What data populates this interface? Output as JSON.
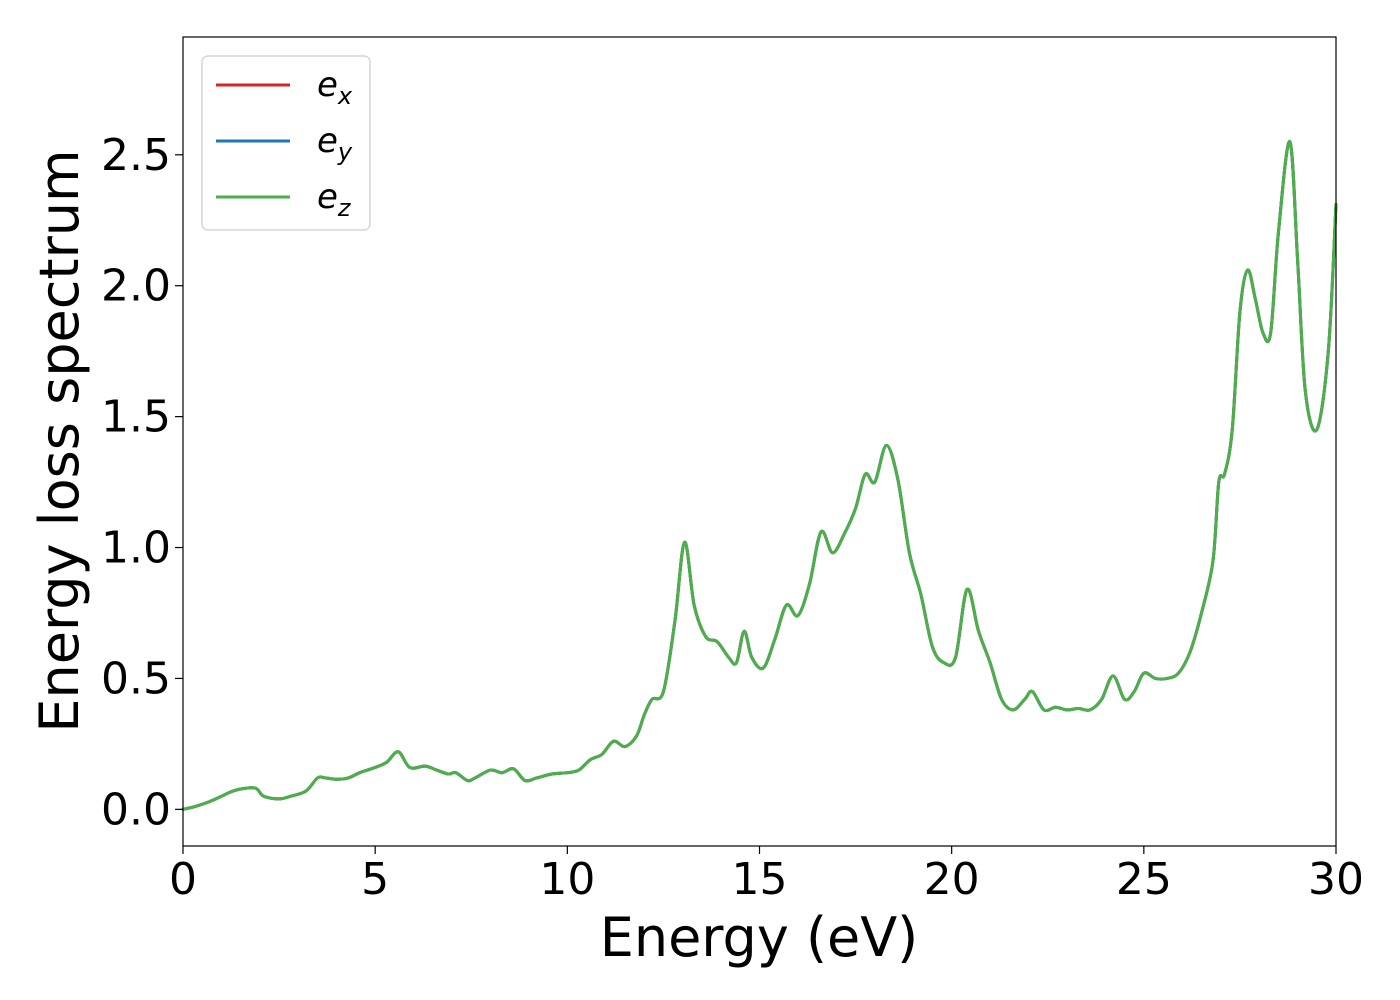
{
  "chart_data": {
    "type": "line",
    "title": "",
    "xlabel": "Energy (eV)",
    "ylabel": "Energy loss spectrum",
    "xlim": [
      0,
      30
    ],
    "ylim": [
      -0.14,
      2.95
    ],
    "xticks": [
      0,
      5,
      10,
      15,
      20,
      25,
      30
    ],
    "xtick_labels": [
      "0",
      "5",
      "10",
      "15",
      "20",
      "25",
      "30"
    ],
    "yticks": [
      0.0,
      0.5,
      1.0,
      1.5,
      2.0,
      2.5
    ],
    "ytick_labels": [
      "0.0",
      "0.5",
      "1.0",
      "1.5",
      "2.0",
      "2.5"
    ],
    "grid": false,
    "legend_position": "top-left",
    "x": [
      0,
      0.3,
      0.7,
      1.0,
      1.3,
      1.6,
      1.9,
      2.1,
      2.5,
      2.8,
      3.2,
      3.5,
      3.7,
      4.0,
      4.3,
      4.6,
      5.0,
      5.3,
      5.6,
      5.9,
      6.3,
      6.6,
      6.9,
      7.1,
      7.4,
      7.6,
      8.0,
      8.3,
      8.6,
      8.9,
      9.2,
      9.6,
      10.0,
      10.3,
      10.6,
      10.9,
      11.2,
      11.5,
      11.8,
      12.0,
      12.2,
      12.5,
      12.8,
      13.05,
      13.3,
      13.6,
      13.9,
      14.2,
      14.4,
      14.6,
      14.8,
      15.1,
      15.4,
      15.7,
      16.0,
      16.3,
      16.6,
      16.9,
      17.2,
      17.5,
      17.75,
      18.0,
      18.3,
      18.6,
      18.9,
      19.2,
      19.5,
      19.8,
      20.1,
      20.4,
      20.7,
      21.0,
      21.3,
      21.6,
      21.9,
      22.1,
      22.4,
      22.7,
      23.0,
      23.3,
      23.6,
      23.9,
      24.2,
      24.5,
      24.75,
      25.0,
      25.3,
      25.6,
      25.9,
      26.2,
      26.5,
      26.8,
      26.95,
      27.1,
      27.3,
      27.5,
      27.7,
      27.9,
      28.1,
      28.3,
      28.5,
      28.8,
      29.0,
      29.2,
      29.5,
      29.8,
      30.0
    ],
    "series": [
      {
        "name": "e_x",
        "color": "#d62728",
        "values": [
          0.0,
          0.01,
          0.03,
          0.05,
          0.07,
          0.08,
          0.08,
          0.05,
          0.04,
          0.05,
          0.07,
          0.12,
          0.12,
          0.115,
          0.12,
          0.14,
          0.16,
          0.18,
          0.22,
          0.16,
          0.165,
          0.15,
          0.135,
          0.14,
          0.11,
          0.12,
          0.15,
          0.14,
          0.155,
          0.11,
          0.12,
          0.135,
          0.14,
          0.15,
          0.19,
          0.21,
          0.26,
          0.24,
          0.28,
          0.36,
          0.42,
          0.45,
          0.72,
          1.02,
          0.78,
          0.66,
          0.64,
          0.58,
          0.56,
          0.68,
          0.58,
          0.54,
          0.65,
          0.78,
          0.74,
          0.86,
          1.06,
          0.98,
          1.05,
          1.15,
          1.28,
          1.25,
          1.39,
          1.26,
          0.98,
          0.82,
          0.62,
          0.56,
          0.58,
          0.84,
          0.68,
          0.56,
          0.42,
          0.38,
          0.42,
          0.45,
          0.38,
          0.39,
          0.38,
          0.385,
          0.38,
          0.42,
          0.51,
          0.42,
          0.45,
          0.52,
          0.5,
          0.5,
          0.52,
          0.6,
          0.75,
          0.95,
          1.25,
          1.28,
          1.45,
          1.9,
          2.06,
          1.95,
          1.82,
          1.82,
          2.2,
          2.55,
          2.1,
          1.6,
          1.45,
          1.75,
          2.31
        ]
      },
      {
        "name": "e_y",
        "color": "#1f77b4",
        "values": [
          0.0,
          0.01,
          0.03,
          0.05,
          0.07,
          0.08,
          0.08,
          0.05,
          0.04,
          0.05,
          0.07,
          0.12,
          0.12,
          0.115,
          0.12,
          0.14,
          0.16,
          0.18,
          0.22,
          0.16,
          0.165,
          0.15,
          0.135,
          0.14,
          0.11,
          0.12,
          0.15,
          0.14,
          0.155,
          0.11,
          0.12,
          0.135,
          0.14,
          0.15,
          0.19,
          0.21,
          0.26,
          0.24,
          0.28,
          0.36,
          0.42,
          0.45,
          0.72,
          1.02,
          0.78,
          0.66,
          0.64,
          0.58,
          0.56,
          0.68,
          0.58,
          0.54,
          0.65,
          0.78,
          0.74,
          0.86,
          1.06,
          0.98,
          1.05,
          1.15,
          1.28,
          1.25,
          1.39,
          1.26,
          0.98,
          0.82,
          0.62,
          0.56,
          0.58,
          0.84,
          0.68,
          0.56,
          0.42,
          0.38,
          0.42,
          0.45,
          0.38,
          0.39,
          0.38,
          0.385,
          0.38,
          0.42,
          0.51,
          0.42,
          0.45,
          0.52,
          0.5,
          0.5,
          0.52,
          0.6,
          0.75,
          0.95,
          1.25,
          1.28,
          1.45,
          1.9,
          2.06,
          1.95,
          1.82,
          1.82,
          2.2,
          2.55,
          2.1,
          1.6,
          1.45,
          1.75,
          2.31
        ]
      },
      {
        "name": "e_z",
        "color": "#4daf4a",
        "values": [
          0.0,
          0.01,
          0.03,
          0.05,
          0.07,
          0.08,
          0.08,
          0.05,
          0.04,
          0.05,
          0.07,
          0.12,
          0.12,
          0.115,
          0.12,
          0.14,
          0.16,
          0.18,
          0.22,
          0.16,
          0.165,
          0.15,
          0.135,
          0.14,
          0.11,
          0.12,
          0.15,
          0.14,
          0.155,
          0.11,
          0.12,
          0.135,
          0.14,
          0.15,
          0.19,
          0.21,
          0.26,
          0.24,
          0.28,
          0.36,
          0.42,
          0.45,
          0.72,
          1.02,
          0.78,
          0.66,
          0.64,
          0.58,
          0.56,
          0.68,
          0.58,
          0.54,
          0.65,
          0.78,
          0.74,
          0.86,
          1.06,
          0.98,
          1.05,
          1.15,
          1.28,
          1.25,
          1.39,
          1.26,
          0.98,
          0.82,
          0.62,
          0.56,
          0.58,
          0.84,
          0.68,
          0.56,
          0.42,
          0.38,
          0.42,
          0.45,
          0.38,
          0.39,
          0.38,
          0.385,
          0.38,
          0.42,
          0.51,
          0.42,
          0.45,
          0.52,
          0.5,
          0.5,
          0.52,
          0.6,
          0.75,
          0.95,
          1.25,
          1.28,
          1.45,
          1.9,
          2.06,
          1.95,
          1.82,
          1.82,
          2.2,
          2.55,
          2.1,
          1.6,
          1.45,
          1.75,
          2.31
        ]
      }
    ],
    "legend": [
      {
        "base": "e",
        "sub": "x"
      },
      {
        "base": "e",
        "sub": "y"
      },
      {
        "base": "e",
        "sub": "z"
      }
    ]
  }
}
